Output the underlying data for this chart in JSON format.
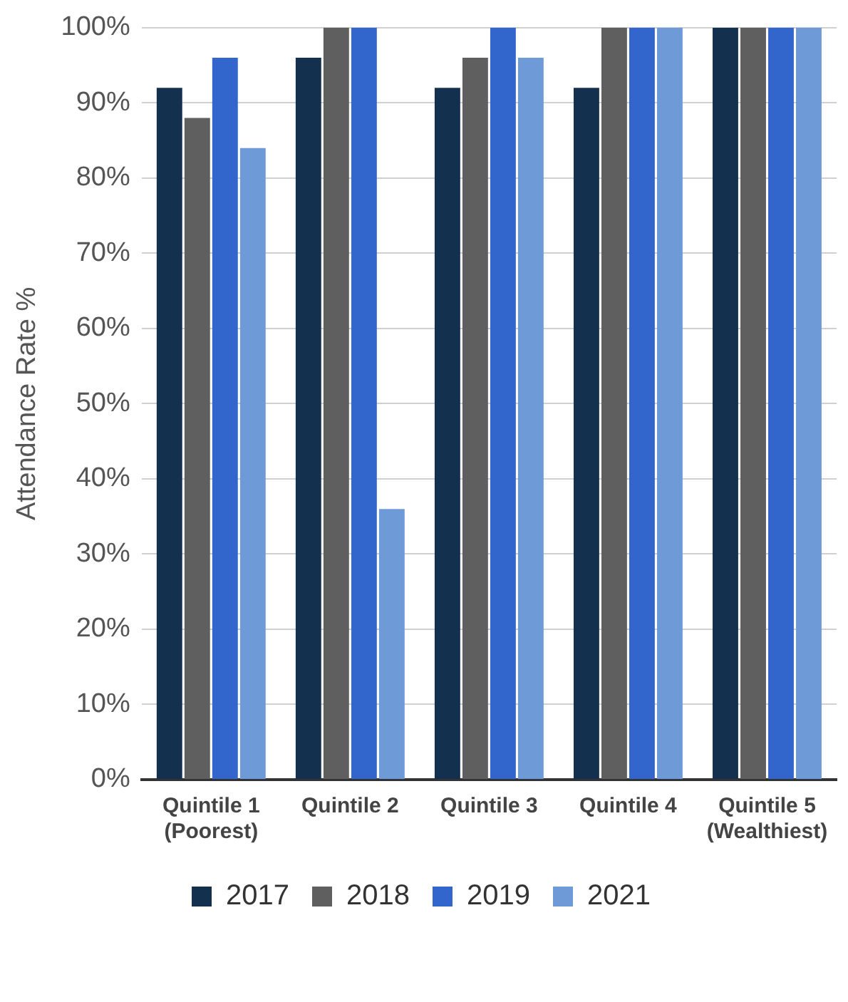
{
  "chart_data": {
    "type": "bar",
    "ylabel": "Attendance Rate %",
    "categories": [
      "Quintile 1\n(Poorest)",
      "Quintile 2",
      "Quintile 3",
      "Quintile 4",
      "Quintile 5\n(Wealthiest)"
    ],
    "series": [
      {
        "name": "2017",
        "color": "#14304f",
        "values": [
          92,
          96,
          92,
          92,
          100
        ]
      },
      {
        "name": "2018",
        "color": "#5f5f5f",
        "values": [
          88,
          100,
          96,
          100,
          100
        ]
      },
      {
        "name": "2019",
        "color": "#3366cc",
        "values": [
          96,
          100,
          100,
          100,
          100
        ]
      },
      {
        "name": "2021",
        "color": "#6f9ad8",
        "values": [
          84,
          36,
          96,
          100,
          100
        ]
      }
    ],
    "ylim": [
      0,
      100
    ],
    "yticks": [
      {
        "value": 0,
        "label": "0%"
      },
      {
        "value": 10,
        "label": "10%"
      },
      {
        "value": 20,
        "label": "20%"
      },
      {
        "value": 30,
        "label": "30%"
      },
      {
        "value": 40,
        "label": "40%"
      },
      {
        "value": 50,
        "label": "50%"
      },
      {
        "value": 60,
        "label": "60%"
      },
      {
        "value": 70,
        "label": "70%"
      },
      {
        "value": 80,
        "label": "80%"
      },
      {
        "value": 90,
        "label": "90%"
      },
      {
        "value": 100,
        "label": "100%"
      }
    ],
    "grid": "y",
    "legend": "bottom"
  }
}
